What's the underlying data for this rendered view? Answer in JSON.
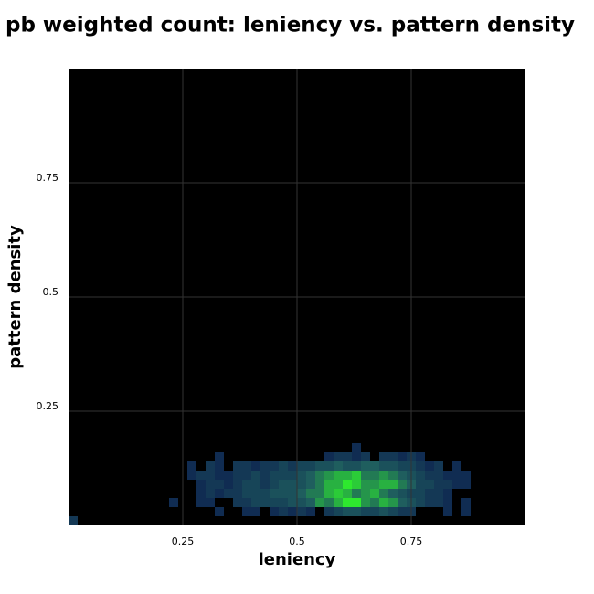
{
  "chart_data": {
    "type": "heatmap",
    "title": "pb weighted count: leniency vs. pattern density",
    "x_label": "leniency",
    "y_label": "pattern density",
    "xlim": [
      0,
      1
    ],
    "ylim": [
      0,
      1
    ],
    "xticks": [
      0.25,
      0.5,
      0.75
    ],
    "yticks": [
      0.25,
      0.5,
      0.75
    ],
    "grid": true,
    "background": "#000000",
    "grid_color": "#333333",
    "cell_size": 0.02,
    "colors": [
      "#0c1f4f",
      "#1f5e5e",
      "#2ee82e"
    ],
    "clim": [
      0,
      10
    ],
    "x": [
      0.01,
      0.03,
      0.05,
      0.07,
      0.09,
      0.11,
      0.13,
      0.15,
      0.17,
      0.19,
      0.21,
      0.23,
      0.25,
      0.27,
      0.29,
      0.31,
      0.33,
      0.35,
      0.37,
      0.39,
      0.41,
      0.43,
      0.45,
      0.47,
      0.49,
      0.51,
      0.53,
      0.55,
      0.57,
      0.59,
      0.61,
      0.63,
      0.65,
      0.67,
      0.69,
      0.71,
      0.73,
      0.75,
      0.77,
      0.79,
      0.81,
      0.83,
      0.85,
      0.87
    ],
    "y": [
      0.01,
      0.03,
      0.05,
      0.07,
      0.09,
      0.11,
      0.13,
      0.15,
      0.17
    ],
    "values": [
      [
        2,
        null,
        null,
        null,
        null,
        null,
        null,
        null,
        null,
        null,
        null,
        null,
        null,
        null,
        null,
        null,
        null,
        null,
        null,
        null,
        null,
        null,
        null,
        null,
        null,
        null,
        null,
        null,
        null,
        null,
        null,
        null,
        null,
        null,
        null,
        null,
        null,
        null,
        null,
        null,
        null,
        null,
        null,
        null
      ],
      [
        null,
        null,
        null,
        null,
        null,
        null,
        null,
        null,
        null,
        null,
        null,
        null,
        null,
        null,
        null,
        null,
        1,
        null,
        null,
        1,
        1,
        null,
        1,
        2,
        1,
        2,
        1,
        null,
        2,
        3,
        4,
        4,
        3,
        3,
        4,
        3,
        2,
        2,
        null,
        null,
        null,
        1,
        null,
        1
      ],
      [
        null,
        null,
        null,
        null,
        null,
        null,
        null,
        null,
        null,
        null,
        null,
        1,
        null,
        null,
        1,
        1,
        null,
        null,
        2,
        2,
        3,
        3,
        3,
        3,
        4,
        4,
        5,
        7,
        6,
        8,
        10,
        10,
        7,
        6,
        8,
        7,
        5,
        4,
        3,
        2,
        2,
        1,
        null,
        1
      ],
      [
        null,
        null,
        null,
        null,
        null,
        null,
        null,
        null,
        null,
        null,
        null,
        null,
        null,
        null,
        1,
        2,
        1,
        2,
        2,
        3,
        3,
        3,
        4,
        4,
        4,
        5,
        6,
        6,
        8,
        9,
        8,
        6,
        7,
        8,
        6,
        5,
        4,
        3,
        3,
        2,
        2,
        1,
        null,
        null
      ],
      [
        null,
        null,
        null,
        null,
        null,
        null,
        null,
        null,
        null,
        null,
        null,
        null,
        null,
        null,
        1,
        2,
        2,
        1,
        2,
        3,
        3,
        2,
        3,
        4,
        4,
        4,
        5,
        6,
        8,
        8,
        10,
        9,
        7,
        7,
        8,
        8,
        6,
        5,
        3,
        3,
        2,
        2,
        1,
        1
      ],
      [
        null,
        null,
        null,
        null,
        null,
        null,
        null,
        null,
        null,
        null,
        null,
        null,
        null,
        1,
        2,
        2,
        1,
        1,
        2,
        2,
        3,
        2,
        3,
        3,
        3,
        4,
        5,
        6,
        7,
        8,
        8,
        9,
        6,
        6,
        7,
        6,
        5,
        4,
        3,
        2,
        2,
        1,
        1,
        1
      ],
      [
        null,
        null,
        null,
        null,
        null,
        null,
        null,
        null,
        null,
        null,
        null,
        null,
        null,
        1,
        null,
        2,
        1,
        null,
        2,
        2,
        1,
        2,
        2,
        3,
        2,
        3,
        3,
        4,
        4,
        5,
        4,
        4,
        5,
        5,
        4,
        4,
        3,
        3,
        2,
        1,
        2,
        null,
        1,
        null
      ],
      [
        null,
        null,
        null,
        null,
        null,
        null,
        null,
        null,
        null,
        null,
        null,
        null,
        null,
        null,
        null,
        null,
        1,
        null,
        null,
        null,
        null,
        null,
        null,
        null,
        null,
        null,
        null,
        null,
        1,
        2,
        2,
        1,
        2,
        null,
        2,
        2,
        1,
        2,
        1,
        null,
        null,
        null,
        null,
        null
      ],
      [
        null,
        null,
        null,
        null,
        null,
        null,
        null,
        null,
        null,
        null,
        null,
        null,
        null,
        null,
        null,
        null,
        null,
        null,
        null,
        null,
        null,
        null,
        null,
        null,
        null,
        null,
        null,
        null,
        null,
        null,
        null,
        1,
        null,
        null,
        null,
        null,
        null,
        null,
        null,
        null,
        null,
        null,
        null,
        null
      ]
    ]
  }
}
